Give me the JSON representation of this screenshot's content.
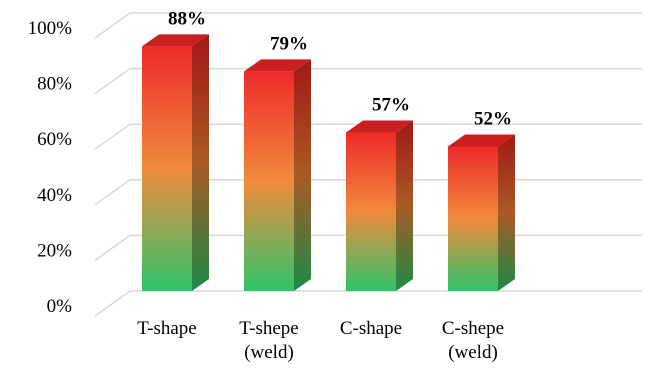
{
  "chart_data": {
    "type": "bar",
    "title": "",
    "xlabel": "",
    "ylabel": "",
    "categories": [
      [
        "T-shape"
      ],
      [
        "T-shepe",
        "(weld)"
      ],
      [
        "C-shape"
      ],
      [
        "C-shepe",
        "(weld)"
      ]
    ],
    "values": [
      88,
      79,
      57,
      52
    ],
    "data_labels": [
      "88%",
      "79%",
      "57%",
      "52%"
    ],
    "ylim": [
      0,
      100
    ],
    "yticks": [
      0,
      20,
      40,
      60,
      80,
      100
    ],
    "ytick_labels": [
      "0%",
      "20%",
      "40%",
      "60%",
      "80%",
      "100%"
    ],
    "grid": true,
    "style": "3d-column",
    "colors": {
      "gradient_top": "#ee2a2a",
      "gradient_mid": "#f08a3c",
      "gradient_bottom": "#2ec46a",
      "gridline": "#d9d9d9"
    }
  }
}
